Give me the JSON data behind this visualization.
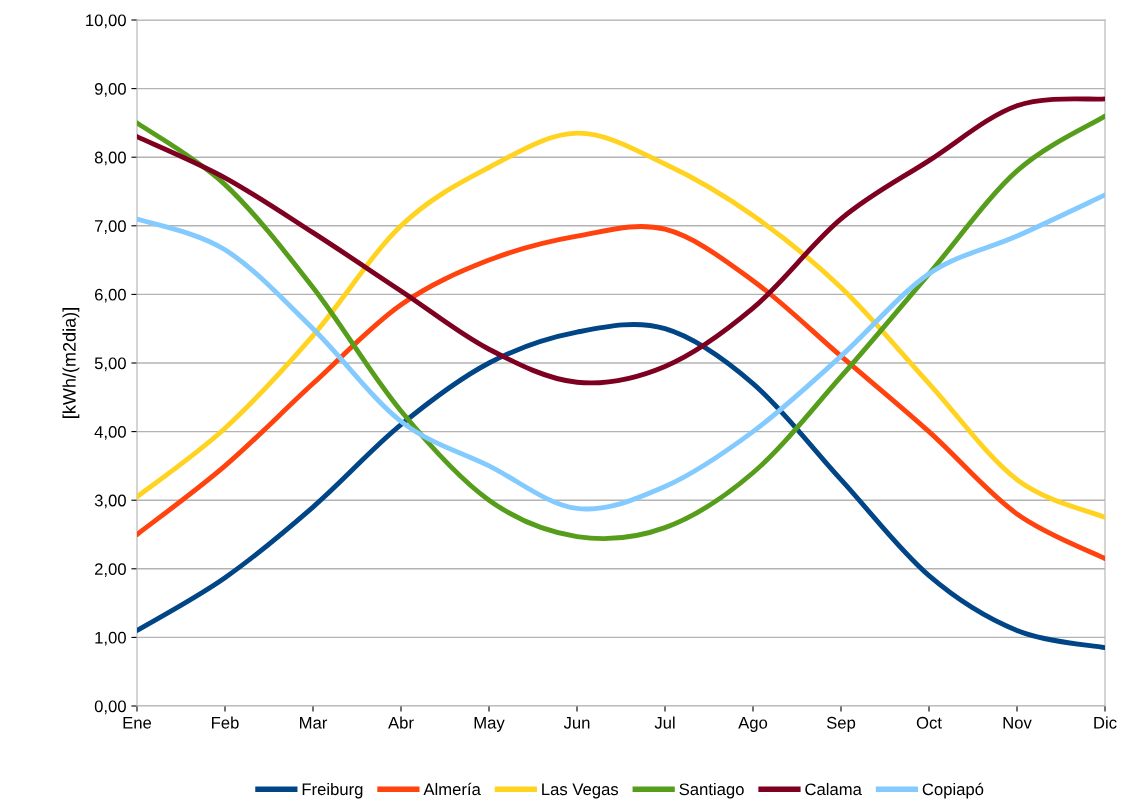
{
  "chart_data": {
    "type": "line",
    "ylabel": "[kWh/(m2dia)]",
    "categories": [
      "Ene",
      "Feb",
      "Mar",
      "Abr",
      "May",
      "Jun",
      "Jul",
      "Ago",
      "Sep",
      "Oct",
      "Nov",
      "Dic"
    ],
    "series": [
      {
        "name": "Freiburg",
        "color": "#004586",
        "values": [
          1.1,
          1.87,
          2.9,
          4.1,
          5.0,
          5.45,
          5.5,
          4.7,
          3.3,
          1.9,
          1.1,
          0.85
        ]
      },
      {
        "name": "Almería",
        "color": "#ff420e",
        "values": [
          2.5,
          3.5,
          4.7,
          5.85,
          6.5,
          6.85,
          6.95,
          6.2,
          5.1,
          4.0,
          2.8,
          2.15
        ]
      },
      {
        "name": "Las Vegas",
        "color": "#ffd320",
        "values": [
          3.05,
          4.05,
          5.4,
          7.0,
          7.85,
          8.35,
          7.9,
          7.15,
          6.1,
          4.7,
          3.3,
          2.75
        ]
      },
      {
        "name": "Santiago",
        "color": "#579d1c",
        "values": [
          8.5,
          7.6,
          6.1,
          4.3,
          3.0,
          2.47,
          2.6,
          3.4,
          4.8,
          6.3,
          7.8,
          8.6
        ]
      },
      {
        "name": "Calama",
        "color": "#7e0021",
        "values": [
          8.3,
          7.7,
          6.9,
          6.05,
          5.2,
          4.72,
          4.95,
          5.8,
          7.1,
          7.95,
          8.75,
          8.85
        ]
      },
      {
        "name": "Copiapó",
        "color": "#83caff",
        "values": [
          7.1,
          6.65,
          5.5,
          4.15,
          3.5,
          2.88,
          3.2,
          4.0,
          5.1,
          6.3,
          6.85,
          7.45
        ]
      }
    ],
    "ylim": [
      0,
      10
    ],
    "yticks": [
      {
        "value": 0,
        "label": "0,00"
      },
      {
        "value": 1,
        "label": "1,00"
      },
      {
        "value": 2,
        "label": "2,00"
      },
      {
        "value": 3,
        "label": "3,00"
      },
      {
        "value": 4,
        "label": "4,00"
      },
      {
        "value": 5,
        "label": "5,00"
      },
      {
        "value": 6,
        "label": "6,00"
      },
      {
        "value": 7,
        "label": "7,00"
      },
      {
        "value": 8,
        "label": "8,00"
      },
      {
        "value": 9,
        "label": "9,00"
      },
      {
        "value": 10,
        "label": "10,00"
      }
    ],
    "grid": "y",
    "legend": "bottom",
    "marker": "none",
    "line_style": "solid"
  }
}
